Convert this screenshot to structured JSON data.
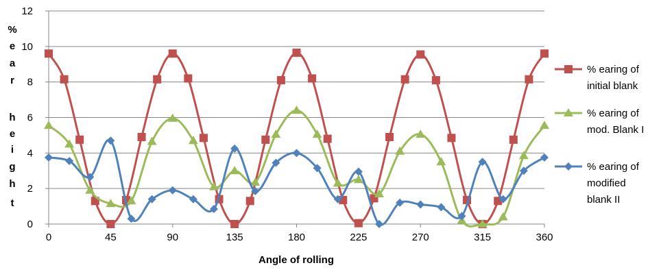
{
  "chart_data": {
    "type": "line",
    "title": "",
    "xlabel": "Angle of rolling",
    "ylabel": "% e a r h e i g h t",
    "xlim": [
      0,
      360
    ],
    "ylim": [
      0,
      12
    ],
    "xticks": [
      "0",
      "45",
      "90",
      "135",
      "180",
      "225",
      "270",
      "315",
      "360"
    ],
    "yticks": [
      "0",
      "2",
      "4",
      "6",
      "8",
      "10",
      "12"
    ],
    "grid": "horizontal",
    "legend_position": "right",
    "series": [
      {
        "name": "% earing of initial blank",
        "legend_lines": [
          "% earing of",
          "initial blank"
        ],
        "color": "#C0504D",
        "marker": "square",
        "x": [
          0,
          11.25,
          22.5,
          33.75,
          45,
          56.25,
          67.5,
          78.75,
          90,
          101.25,
          112.5,
          123.75,
          135,
          146.25,
          157.5,
          168.75,
          180,
          191.25,
          202.5,
          213.75,
          225,
          236.25,
          247.5,
          258.75,
          270,
          281.25,
          292.5,
          303.75,
          315,
          326.25,
          337.5,
          348.75,
          360
        ],
        "y": [
          9.6,
          8.15,
          4.75,
          1.3,
          0.0,
          1.35,
          4.9,
          8.15,
          9.6,
          8.2,
          4.85,
          1.4,
          0.0,
          1.3,
          4.75,
          8.1,
          9.65,
          8.2,
          4.8,
          1.35,
          0.05,
          1.45,
          4.9,
          8.15,
          9.55,
          8.1,
          4.85,
          1.35,
          0.0,
          1.3,
          4.75,
          8.15,
          9.6
        ]
      },
      {
        "name": "% earing of mod. Blank I",
        "legend_lines": [
          "% earing of",
          "mod. Blank I"
        ],
        "color": "#9BBB59",
        "marker": "triangle",
        "x": [
          0,
          15,
          30,
          45,
          60,
          75,
          90,
          105,
          120,
          135,
          150,
          165,
          180,
          195,
          210,
          225,
          240,
          255,
          270,
          285,
          300,
          315,
          330,
          345,
          360
        ],
        "y": [
          5.55,
          4.5,
          1.9,
          1.15,
          1.3,
          4.65,
          5.95,
          4.7,
          2.1,
          3.0,
          2.35,
          5.05,
          6.4,
          5.05,
          2.3,
          2.5,
          1.7,
          4.1,
          5.05,
          3.5,
          0.2,
          0.0,
          0.4,
          3.85,
          5.55
        ]
      },
      {
        "name": "% earing of modified blank II",
        "legend_lines": [
          "% earing of",
          "modified",
          "blank II"
        ],
        "color": "#4F81BD",
        "marker": "diamond",
        "x": [
          0,
          15,
          30,
          45,
          60,
          75,
          90,
          105,
          120,
          135,
          150,
          165,
          180,
          195,
          210,
          225,
          240,
          255,
          270,
          285,
          300,
          315,
          330,
          345,
          360
        ],
        "y": [
          3.75,
          3.55,
          2.65,
          4.7,
          0.3,
          1.4,
          1.9,
          1.4,
          0.85,
          4.25,
          1.85,
          3.45,
          4.0,
          3.15,
          1.4,
          2.95,
          0.0,
          1.2,
          1.1,
          0.95,
          0.45,
          3.5,
          1.4,
          3.0,
          3.75
        ]
      }
    ]
  }
}
